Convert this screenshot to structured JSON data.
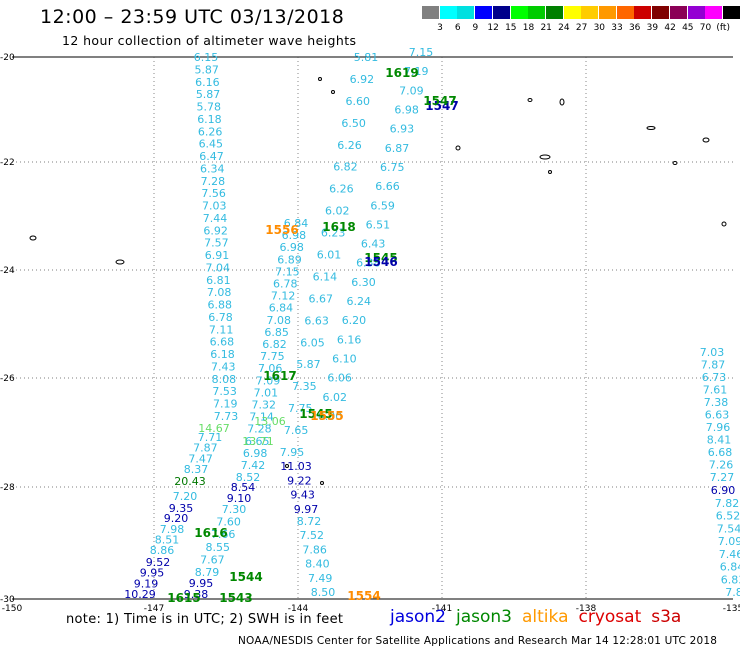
{
  "header": {
    "title": "12:00 – 23:59 UTC 03/13/2018",
    "subtitle": "12 hour collection of altimeter wave heights"
  },
  "legend": {
    "colors": [
      "#808080",
      "#00ffff",
      "#00e0e0",
      "#0000ff",
      "#00008b",
      "#00ff00",
      "#00cc00",
      "#008000",
      "#ffff00",
      "#ffcc00",
      "#ff9900",
      "#ff6600",
      "#cc0000",
      "#800000",
      "#8b0057",
      "#9400d3",
      "#ff00ff",
      "#000000"
    ],
    "labels": [
      "3",
      "6",
      "9",
      "12",
      "15",
      "18",
      "21",
      "24",
      "27",
      "30",
      "33",
      "36",
      "39",
      "42",
      "45",
      "70",
      "(ft)"
    ]
  },
  "axes": {
    "x_ticks": [
      "-150",
      "-147",
      "-144",
      "-141",
      "-138",
      "-135"
    ],
    "y_ticks": [
      "-20",
      "-22",
      "-24",
      "-26",
      "-28",
      "-30"
    ]
  },
  "tracks": [
    {
      "id": "t1",
      "color": "#33bbe0",
      "values": [
        "6.15",
        "5.87",
        "6.16",
        "5.87",
        "5.78",
        "6.18",
        "6.26",
        "6.45",
        "6.47",
        "6.34",
        "7.28",
        "7.56",
        "7.03",
        "7.44",
        "6.92",
        "7.57",
        "6.91",
        "7.04",
        "6.81",
        "7.08",
        "6.88",
        "6.78",
        "7.11",
        "6.68",
        "6.18",
        "7.43",
        "8.08",
        "7.53",
        "7.19",
        "7.73"
      ]
    },
    {
      "id": "t1b",
      "color": "#66dd66",
      "values": [
        "14.67"
      ]
    },
    {
      "id": "t1c",
      "color": "#33bbe0",
      "values": [
        "7.71",
        "7.87",
        "7.47",
        "8.37"
      ]
    },
    {
      "id": "t1d",
      "color": "#007700",
      "values": [
        "20.43"
      ]
    },
    {
      "id": "t1e",
      "color": "#33bbe0",
      "values": [
        "7.20"
      ]
    },
    {
      "id": "t1f",
      "color": "#0000aa",
      "values": [
        "9.35",
        "9.20"
      ]
    },
    {
      "id": "t1g",
      "color": "#33bbe0",
      "values": [
        "7.98",
        "8.51",
        "8.86"
      ]
    },
    {
      "id": "t1h",
      "color": "#0000aa",
      "values": [
        "9.52",
        "9.95",
        "9.19",
        "10.29"
      ]
    },
    {
      "id": "t2",
      "color": "#33bbe0",
      "values": [
        "6.84",
        "6.98",
        "6.98",
        "6.89",
        "7.15",
        "6.78",
        "7.12",
        "6.84",
        "7.08",
        "6.85",
        "6.82",
        "7.75",
        "7.06",
        "7.09",
        "7.01",
        "7.32",
        "7.14",
        "7.28",
        "6.65",
        "6.98",
        "7.42"
      ]
    },
    {
      "id": "t2b",
      "color": "#66dd66",
      "values": [
        "13.71",
        "13.06"
      ]
    },
    {
      "id": "t2c",
      "color": "#33bbe0",
      "values": [
        "8.52"
      ]
    },
    {
      "id": "t2d",
      "color": "#0000aa",
      "values": [
        "8.54",
        "9.10"
      ]
    },
    {
      "id": "t2e",
      "color": "#33bbe0",
      "values": [
        "7.30",
        "7.60",
        "7.66",
        "8.55",
        "7.67",
        "8.79"
      ]
    },
    {
      "id": "t2f",
      "color": "#0000aa",
      "values": [
        "9.95",
        "9.38"
      ]
    },
    {
      "id": "t3",
      "color": "#33bbe0",
      "values": [
        "5.81",
        "6.92",
        "6.60",
        "6.50",
        "6.26",
        "6.82",
        "6.26",
        "6.02",
        "6.23",
        "6.01",
        "6.14",
        "6.67",
        "6.63",
        "6.05",
        "5.87",
        "7.35",
        "7.75",
        "7.65",
        "7.95"
      ]
    },
    {
      "id": "t3b",
      "color": "#0000aa",
      "values": [
        "11.03",
        "9.22",
        "9.43",
        "9.97"
      ]
    },
    {
      "id": "t3c",
      "color": "#33bbe0",
      "values": [
        "8.72",
        "7.52",
        "7.86",
        "8.40",
        "7.49",
        "8.50"
      ]
    },
    {
      "id": "t4",
      "color": "#33bbe0",
      "values": [
        "7.15",
        "7.19",
        "7.09",
        "6.98",
        "6.93",
        "6.87",
        "6.75",
        "6.66",
        "6.59",
        "6.51",
        "6.43",
        "6.38",
        "6.30",
        "6.24",
        "6.20",
        "6.16",
        "6.10",
        "6.06",
        "6.02",
        "6.00"
      ]
    },
    {
      "id": "t5",
      "color": "#33bbe0",
      "values": [
        "7.03",
        "7.87",
        "6.73",
        "7.61",
        "7.38",
        "6.63",
        "7.96",
        "8.41",
        "6.68",
        "7.26",
        "7.27"
      ]
    },
    {
      "id": "t5b",
      "color": "#0000aa",
      "values": [
        "6.90"
      ]
    },
    {
      "id": "t5c",
      "color": "#33bbe0",
      "values": [
        "7.82",
        "6.52",
        "7.54",
        "7.09",
        "7.46",
        "6.84",
        "6.83",
        "7.8"
      ]
    }
  ],
  "pass_labels": [
    {
      "text": "1619",
      "color": "#008800"
    },
    {
      "text": "1547",
      "color": "#0000aa"
    },
    {
      "text": "1547",
      "color": "#008800"
    },
    {
      "text": "1556",
      "color": "#ff8c00"
    },
    {
      "text": "1618",
      "color": "#008800"
    },
    {
      "text": "1545",
      "color": "#008800"
    },
    {
      "text": "1546",
      "color": "#0000aa"
    },
    {
      "text": "1617",
      "color": "#008800"
    },
    {
      "text": "1545",
      "color": "#008800"
    },
    {
      "text": "1555",
      "color": "#ff8c00"
    },
    {
      "text": "1616",
      "color": "#008800"
    },
    {
      "text": "1544",
      "color": "#008800"
    },
    {
      "text": "1615",
      "color": "#008800"
    },
    {
      "text": "1543",
      "color": "#008800"
    },
    {
      "text": "1554",
      "color": "#ff8c00"
    }
  ],
  "footer": {
    "note": "note: 1) Time is in UTC; 2) SWH is in feet",
    "missions": [
      {
        "name": "jason2",
        "color": "#0000dd"
      },
      {
        "name": "jason3",
        "color": "#008800"
      },
      {
        "name": "altika",
        "color": "#ff9900"
      },
      {
        "name": "cryosat",
        "color": "#dd0000"
      },
      {
        "name": "s3a",
        "color": "#cc0000"
      }
    ],
    "credit": "NOAA/NESDIS Center for Satellite Applications and Research   Mar 14 12:28:01 UTC 2018"
  }
}
